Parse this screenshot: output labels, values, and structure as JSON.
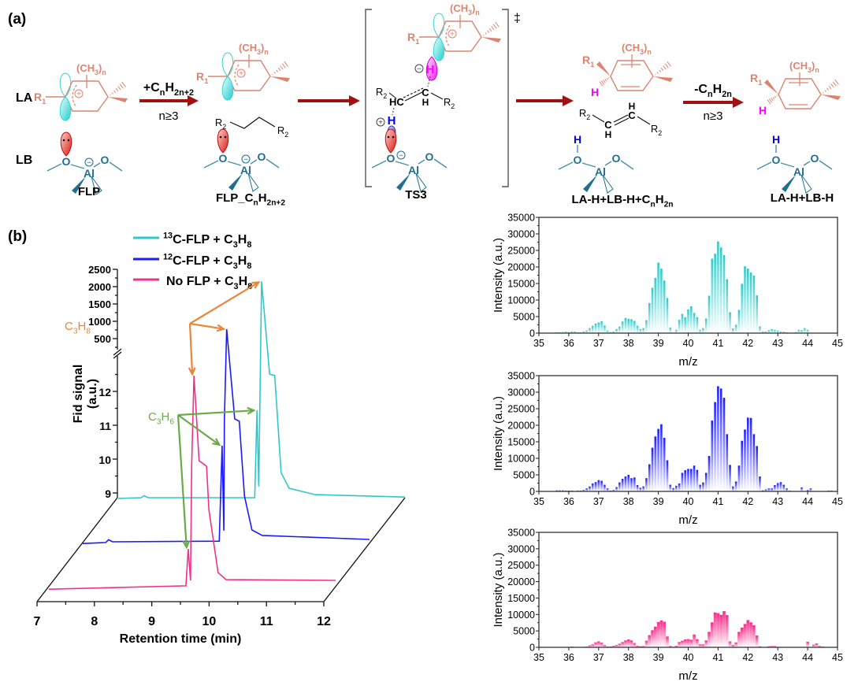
{
  "figure": {
    "panel_a_label": "(a)",
    "panel_b_label": "(b)"
  },
  "scheme": {
    "row_labels": {
      "la": "LA",
      "lb": "LB"
    },
    "atoms": {
      "R1": [
        [
          "R",
          ""
        ],
        [
          "1",
          "sub"
        ]
      ],
      "R2": [
        [
          "R",
          ""
        ],
        [
          "2",
          "sub"
        ]
      ],
      "CH3n": [
        [
          "(CH",
          ""
        ],
        [
          "3",
          "sub"
        ],
        [
          ")",
          ""
        ],
        [
          "n",
          "sub"
        ]
      ],
      "O": "O",
      "Al": "Al",
      "H": "H",
      "C": "C",
      "HC": "HC",
      "plus": "+",
      "minus": "−"
    },
    "steps": [
      {
        "above": [
          [
            "+C",
            ""
          ],
          [
            "n",
            "sub"
          ],
          [
            "H",
            ""
          ],
          [
            "2n+2",
            "sub"
          ]
        ],
        "below": "n≥3"
      },
      {},
      {},
      {
        "above": [
          [
            "-C",
            ""
          ],
          [
            "n",
            "sub"
          ],
          [
            "H",
            ""
          ],
          [
            "2n",
            "sub"
          ]
        ],
        "below": "n≥3"
      }
    ],
    "species": [
      {
        "label": "FLP"
      },
      {
        "label": [
          [
            "FLP_C",
            ""
          ],
          [
            "n",
            "sub"
          ],
          [
            "H",
            ""
          ],
          [
            "2n+2",
            "sub"
          ]
        ]
      },
      {
        "label": "TS3",
        "mark": "‡"
      },
      {
        "label": [
          [
            "LA-H+LB-H+C",
            ""
          ],
          [
            "n",
            "sub"
          ],
          [
            "H",
            ""
          ],
          [
            "2n",
            "sub"
          ]
        ]
      },
      {
        "label": "LA-H+LB-H"
      }
    ],
    "colors": {
      "lewis_acid": "#dd8470",
      "lewis_base": "#1f6f8f",
      "arrow": "#a01212",
      "hydride": "#ff00ff",
      "proton": "#0000ee",
      "orbital_acid": "#33d6d6",
      "orbital_base": "#e8302a"
    }
  },
  "chart_data": [
    {
      "type": "line",
      "xlabel": "Retention time (min)",
      "ylabel_lines": [
        "Fid signal",
        "(a.u.)"
      ],
      "xlim": [
        7,
        12
      ],
      "xticks": [
        7,
        8,
        9,
        10,
        11,
        12
      ],
      "y_axis_broken": true,
      "yticks_lower": [
        9,
        10,
        11,
        12
      ],
      "yticks_upper": [
        500,
        1000,
        1500,
        2000,
        2500
      ],
      "legend_position": "top",
      "series": [
        {
          "name": [
            [
              "13",
              "sup"
            ],
            [
              "C-FLP + C",
              ""
            ],
            [
              "3",
              "sub"
            ],
            [
              "H",
              ""
            ],
            [
              "8",
              "sub"
            ]
          ],
          "color": "#2ec8c8",
          "points": [
            [
              7,
              8.84
            ],
            [
              7.4,
              8.86
            ],
            [
              7.45,
              8.92
            ],
            [
              7.52,
              8.86
            ],
            [
              9.38,
              8.86
            ],
            [
              9.42,
              11.44
            ],
            [
              9.45,
              9.19
            ],
            [
              9.5,
              2150
            ],
            [
              9.64,
              12.51
            ],
            [
              9.73,
              12.47
            ],
            [
              9.84,
              9.6
            ],
            [
              9.98,
              9.14
            ],
            [
              10.43,
              8.95
            ],
            [
              12,
              8.88
            ]
          ]
        },
        {
          "name": [
            [
              "12",
              "sup"
            ],
            [
              "C-FLP + C",
              ""
            ],
            [
              "3",
              "sub"
            ],
            [
              "H",
              ""
            ],
            [
              "8",
              "sub"
            ]
          ],
          "color": "#1a1aff",
          "points": [
            [
              7,
              8.81
            ],
            [
              7.4,
              8.84
            ],
            [
              7.45,
              8.92
            ],
            [
              7.52,
              8.86
            ],
            [
              9.38,
              8.88
            ],
            [
              9.43,
              11.7
            ],
            [
              9.46,
              9.19
            ],
            [
              9.47,
              12.47
            ],
            [
              9.51,
              2045
            ],
            [
              9.65,
              12.49
            ],
            [
              9.73,
              12.42
            ],
            [
              9.82,
              10.21
            ],
            [
              9.95,
              9.21
            ],
            [
              10.13,
              9.05
            ],
            [
              12,
              8.93
            ]
          ]
        },
        {
          "name": [
            [
              "No FLP + C",
              ""
            ],
            [
              "3",
              "sub"
            ],
            [
              "H",
              ""
            ],
            [
              "8",
              "sub"
            ]
          ],
          "color": "#f0308a",
          "points": [
            [
              7,
              8.81
            ],
            [
              9.39,
              8.91
            ],
            [
              9.43,
              10.0
            ],
            [
              9.47,
              9.07
            ],
            [
              9.49,
              12.49
            ],
            [
              9.53,
              2023
            ],
            [
              9.62,
              12.6
            ],
            [
              9.68,
              12.53
            ],
            [
              9.75,
              12.44
            ],
            [
              9.79,
              11.16
            ],
            [
              9.95,
              9.3
            ],
            [
              10.09,
              9.09
            ],
            [
              12,
              9.07
            ]
          ]
        }
      ],
      "annotations": [
        {
          "label": [
            [
              "C",
              ""
            ],
            [
              "3",
              "sub"
            ],
            [
              "H",
              ""
            ],
            [
              "8",
              "sub"
            ]
          ],
          "color": "#e8873a",
          "targets": [
            [
              0,
              9.5,
              2150
            ],
            [
              1,
              9.51,
              2045
            ],
            [
              2,
              9.53,
              2023
            ]
          ]
        },
        {
          "label": [
            [
              "C",
              ""
            ],
            [
              "3",
              "sub"
            ],
            [
              "H",
              ""
            ],
            [
              "6",
              "sub"
            ]
          ],
          "color": "#6aaa48",
          "targets": [
            [
              0,
              9.42,
              11.44
            ],
            [
              1,
              9.43,
              11.7
            ],
            [
              2,
              9.43,
              10.0
            ]
          ]
        }
      ]
    },
    {
      "type": "bar",
      "xlabel": "m/z",
      "ylabel": "Intensity (a.u.)",
      "xlim": [
        35,
        45
      ],
      "ylim": [
        0,
        35000
      ],
      "xticks": [
        35,
        36,
        37,
        38,
        39,
        40,
        41,
        42,
        43,
        44,
        45
      ],
      "yticks": [
        0,
        5000,
        10000,
        15000,
        20000,
        25000,
        30000,
        35000
      ],
      "color": "#2ec8c8",
      "x_start": 35.6,
      "x_step": 0.1,
      "values": [
        200,
        200,
        300,
        500,
        300,
        500,
        500,
        200,
        200,
        500,
        800,
        1500,
        2200,
        2900,
        3200,
        3600,
        2300,
        800,
        300,
        500,
        1200,
        2000,
        3500,
        4600,
        4300,
        4200,
        3700,
        2200,
        1200,
        1500,
        3900,
        9100,
        13700,
        16700,
        21300,
        19500,
        15900,
        10600,
        1700,
        0,
        1000,
        4000,
        5800,
        4800,
        7200,
        8100,
        6100,
        4800,
        1000,
        1500,
        4400,
        11300,
        22500,
        24000,
        27700,
        25900,
        23600,
        16300,
        6300,
        1400,
        2500,
        7000,
        14900,
        20200,
        19500,
        18300,
        17400,
        11400,
        2000,
        500,
        500,
        900,
        1200,
        1000,
        800,
        500,
        400,
        200,
        0,
        0,
        300,
        1000,
        900,
        1500,
        1000
      ]
    },
    {
      "type": "bar",
      "xlabel": "m/z",
      "ylabel": "Intensity (a.u.)",
      "xlim": [
        35,
        45
      ],
      "ylim": [
        0,
        35000
      ],
      "xticks": [
        35,
        36,
        37,
        38,
        39,
        40,
        41,
        42,
        43,
        44,
        45
      ],
      "yticks": [
        0,
        5000,
        10000,
        15000,
        20000,
        25000,
        30000,
        35000
      ],
      "color": "#1a1aff",
      "x_start": 35.6,
      "x_step": 0.1,
      "values": [
        300,
        300,
        300,
        200,
        200,
        200,
        0,
        200,
        200,
        400,
        900,
        1500,
        2400,
        2800,
        3400,
        3200,
        2000,
        900,
        200,
        400,
        1300,
        2700,
        3800,
        4500,
        5000,
        4000,
        4200,
        1900,
        1100,
        1500,
        4000,
        8200,
        13200,
        16600,
        18900,
        20300,
        16200,
        9400,
        2000,
        1000,
        1700,
        2400,
        5600,
        6400,
        6800,
        6800,
        7800,
        6500,
        2000,
        2700,
        5600,
        10700,
        21400,
        27000,
        31800,
        31100,
        28300,
        17300,
        8000,
        1500,
        3000,
        7800,
        15300,
        18700,
        22300,
        22200,
        17300,
        13700,
        4500,
        300,
        600,
        900,
        900,
        1900,
        2500,
        2800,
        2000,
        900,
        200,
        0,
        0,
        0,
        1200,
        0,
        400,
        900,
        0,
        0,
        0,
        0,
        0,
        200,
        200
      ]
    },
    {
      "type": "bar",
      "xlabel": "m/z",
      "ylabel": "Intensity (a.u.)",
      "xlim": [
        35,
        45
      ],
      "ylim": [
        0,
        35000
      ],
      "xticks": [
        35,
        36,
        37,
        38,
        39,
        40,
        41,
        42,
        43,
        44,
        45
      ],
      "yticks": [
        0,
        5000,
        10000,
        15000,
        20000,
        25000,
        30000,
        35000
      ],
      "color": "#f0308a",
      "x_start": 35.6,
      "x_step": 0.1,
      "values": [
        0,
        0,
        100,
        100,
        100,
        200,
        100,
        0,
        0,
        0,
        200,
        600,
        900,
        1500,
        1800,
        1400,
        700,
        200,
        200,
        500,
        700,
        1100,
        1600,
        2100,
        2400,
        2100,
        1300,
        500,
        300,
        400,
        2000,
        3700,
        5200,
        6300,
        7700,
        8200,
        7800,
        3300,
        400,
        0,
        500,
        1600,
        2000,
        2400,
        2500,
        2300,
        3900,
        2500,
        900,
        900,
        2100,
        4700,
        7600,
        10600,
        10400,
        9900,
        11000,
        9800,
        1800,
        700,
        1500,
        4700,
        6000,
        7100,
        8300,
        7600,
        6700,
        3600,
        300,
        0,
        0,
        300,
        400,
        400,
        0,
        0,
        0,
        0,
        0,
        0,
        0,
        0,
        0,
        0,
        1700,
        0,
        800,
        1200,
        400,
        200
      ]
    }
  ]
}
